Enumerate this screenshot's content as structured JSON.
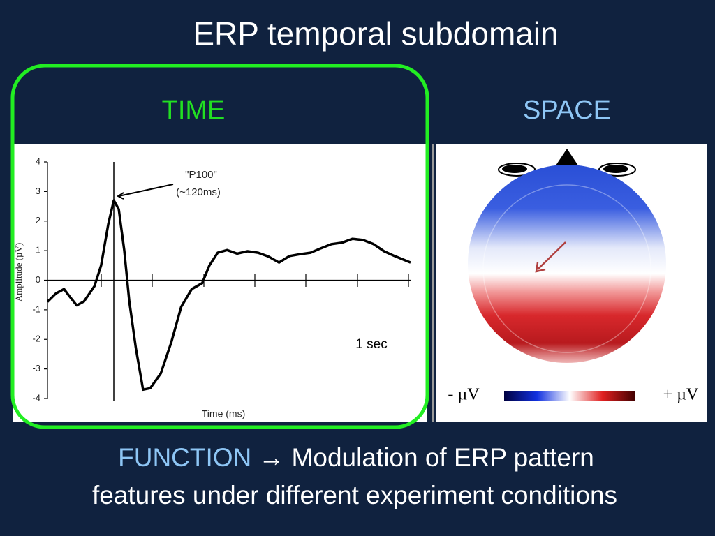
{
  "title": "ERP temporal subdomain",
  "time_label": "TIME",
  "space_label": "SPACE",
  "function": {
    "label": "FUNCTION",
    "line1": "→ Modulation of ERP pattern",
    "line2": "features under different experiment conditions"
  },
  "chart_data": {
    "type": "line",
    "ylabel": "Amplitude (µV)",
    "xlabel": "Time (ms)",
    "annotations": [
      "\"P100\"",
      "(~120ms)",
      "1 sec"
    ],
    "x": [
      0,
      15,
      30,
      40,
      53,
      66,
      85,
      97,
      110,
      120,
      129,
      139,
      148,
      160,
      173,
      186,
      205,
      224,
      242,
      261,
      280,
      293,
      308,
      325,
      343,
      362,
      381,
      400,
      419,
      438,
      457,
      476,
      495,
      514,
      533,
      552,
      571,
      590,
      609,
      628,
      657
    ],
    "values": [
      -0.73,
      -0.45,
      -0.3,
      -0.55,
      -0.85,
      -0.72,
      -0.2,
      0.5,
      1.9,
      2.7,
      2.4,
      1.0,
      -0.7,
      -2.3,
      -3.7,
      -3.65,
      -3.15,
      -2.1,
      -0.9,
      -0.3,
      -0.1,
      0.5,
      0.93,
      1.02,
      0.9,
      0.98,
      0.93,
      0.8,
      0.6,
      0.82,
      0.88,
      0.93,
      1.08,
      1.22,
      1.27,
      1.4,
      1.36,
      1.22,
      0.98,
      0.82,
      0.6
    ],
    "color": "#000000",
    "xlim": [
      0,
      657
    ],
    "ylim": [
      -4,
      4
    ],
    "yticks": [
      -4,
      -3,
      -2,
      -1,
      0,
      1,
      2,
      3,
      4
    ]
  },
  "scalp_map": {
    "neg_label": "- µV",
    "pos_label": "+ µV"
  }
}
